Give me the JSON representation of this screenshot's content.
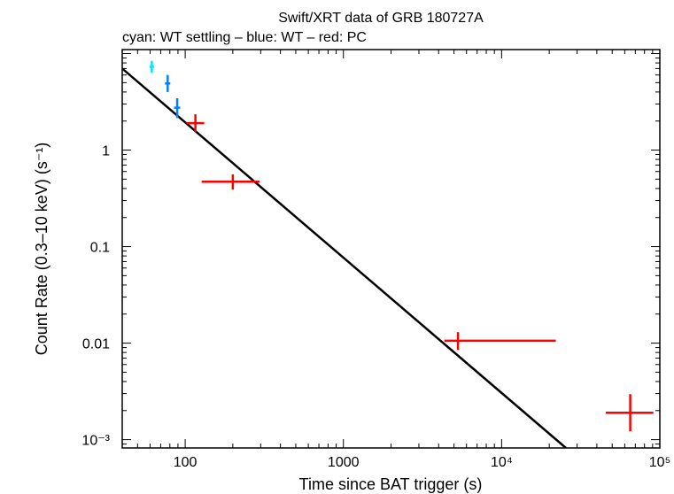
{
  "chart_data": {
    "type": "scatter",
    "title": "Swift/XRT data of GRB 180727A",
    "subtitle": "cyan: WT settling – blue: WT – red: PC",
    "xlabel": "Time since BAT trigger (s)",
    "ylabel": "Count Rate (0.3–10 keV) (s⁻¹)",
    "xscale": "log",
    "yscale": "log",
    "xlim": [
      40,
      100000
    ],
    "ylim": [
      0.00082,
      11
    ],
    "x_ticks": [
      {
        "value": 100,
        "label": "100"
      },
      {
        "value": 1000,
        "label": "1000"
      },
      {
        "value": 10000,
        "label": "10⁴"
      },
      {
        "value": 100000,
        "label": "10⁵"
      }
    ],
    "y_ticks": [
      {
        "value": 0.001,
        "label": "10⁻³"
      },
      {
        "value": 0.01,
        "label": "0.01"
      },
      {
        "value": 0.1,
        "label": "0.1"
      },
      {
        "value": 1,
        "label": "1"
      }
    ],
    "series": [
      {
        "name": "WT settling",
        "color": "#00e5ff",
        "points": [
          {
            "x": 61.5,
            "xlo": 59.5,
            "xhi": 63.5,
            "y": 7.3,
            "ylo": 6.3,
            "yhi": 8.4
          }
        ]
      },
      {
        "name": "WT",
        "color": "#0080ff",
        "points": [
          {
            "x": 77.5,
            "xlo": 74.5,
            "xhi": 80.5,
            "y": 4.9,
            "ylo": 4.0,
            "yhi": 6.0
          },
          {
            "x": 89,
            "xlo": 85,
            "xhi": 93,
            "y": 2.75,
            "ylo": 2.15,
            "yhi": 3.45
          }
        ]
      },
      {
        "name": "PC",
        "color": "#ff0000",
        "points": [
          {
            "x": 116,
            "xlo": 102,
            "xhi": 132,
            "y": 1.9,
            "ylo": 1.55,
            "yhi": 2.35
          },
          {
            "x": 200,
            "xlo": 127,
            "xhi": 295,
            "y": 0.47,
            "ylo": 0.39,
            "yhi": 0.56
          },
          {
            "x": 5300,
            "xlo": 4350,
            "xhi": 22000,
            "y": 0.0106,
            "ylo": 0.0085,
            "yhi": 0.013
          },
          {
            "x": 65000,
            "xlo": 45500,
            "xhi": 91000,
            "y": 0.0019,
            "ylo": 0.00122,
            "yhi": 0.00296
          }
        ]
      }
    ],
    "model_line": {
      "type": "power-law",
      "color": "#000000",
      "points": [
        {
          "x": 40,
          "y": 7.0
        },
        {
          "x": 25500,
          "y": 0.00082
        }
      ]
    }
  }
}
